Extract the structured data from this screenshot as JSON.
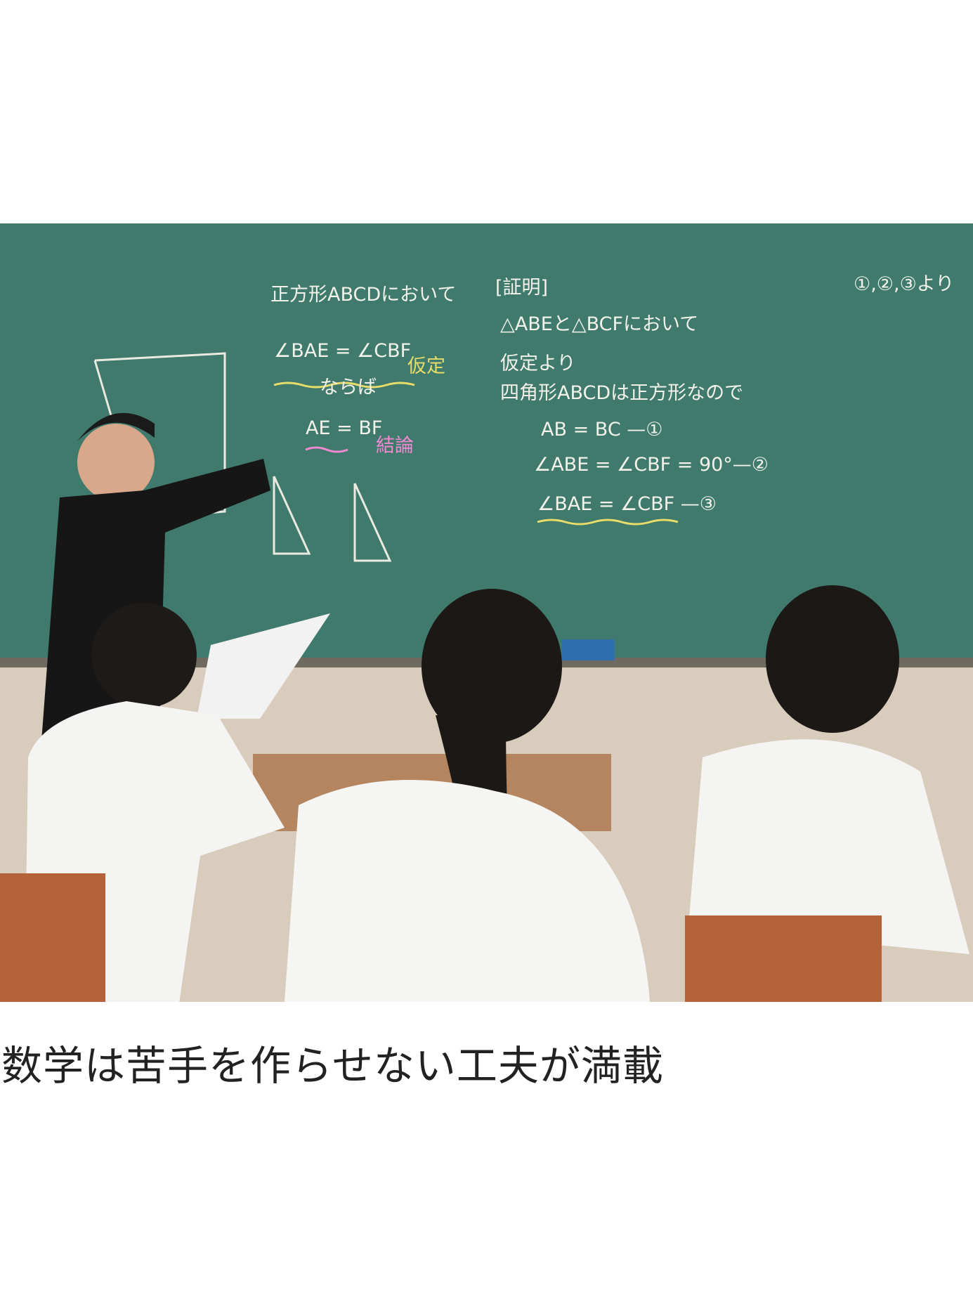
{
  "caption": "数学は苦手を作らせない工夫が満載",
  "board": {
    "left": [
      "正方形ABCDにおいて",
      "∠BAE = ∠CBF",
      "仮定",
      "ならば",
      "AE = BF",
      "結論"
    ],
    "proof": [
      "[証明]",
      "△ABEと△BCFにおいて",
      "仮定より",
      "四角形ABCDは正方形なので",
      "AB = BC —①",
      "∠ABE = ∠CBF = 90°—②",
      "∠BAE = ∠CBF —③"
    ],
    "right": [
      "①,②,③より"
    ]
  }
}
